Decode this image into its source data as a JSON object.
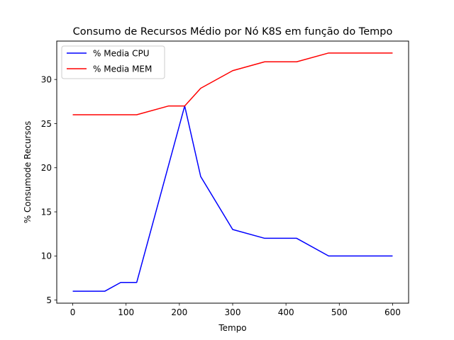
{
  "chart_data": {
    "type": "line",
    "title": "Consumo de Recursos Médio por Nó K8S em função do Tempo",
    "xlabel": "Tempo",
    "ylabel": "% Consumode Recursos",
    "xlim": [
      -30,
      630
    ],
    "ylim": [
      4.65,
      34.35
    ],
    "xticks": [
      0,
      100,
      200,
      300,
      400,
      500,
      600
    ],
    "yticks": [
      5,
      10,
      15,
      20,
      25,
      30
    ],
    "grid": false,
    "legend": "top-left",
    "series": [
      {
        "name": "% Media CPU",
        "color": "#0000ff",
        "x": [
          0,
          60,
          90,
          120,
          210,
          240,
          300,
          360,
          420,
          480,
          540,
          600
        ],
        "y": [
          6,
          6,
          7,
          7,
          27,
          19,
          13,
          12,
          12,
          10,
          10,
          10
        ]
      },
      {
        "name": "% Media MEM",
        "color": "#ff0000",
        "x": [
          0,
          60,
          120,
          180,
          210,
          240,
          300,
          360,
          420,
          480,
          540,
          600
        ],
        "y": [
          26,
          26,
          26,
          27,
          27,
          29,
          31,
          32,
          32,
          33,
          33,
          33
        ]
      }
    ]
  }
}
